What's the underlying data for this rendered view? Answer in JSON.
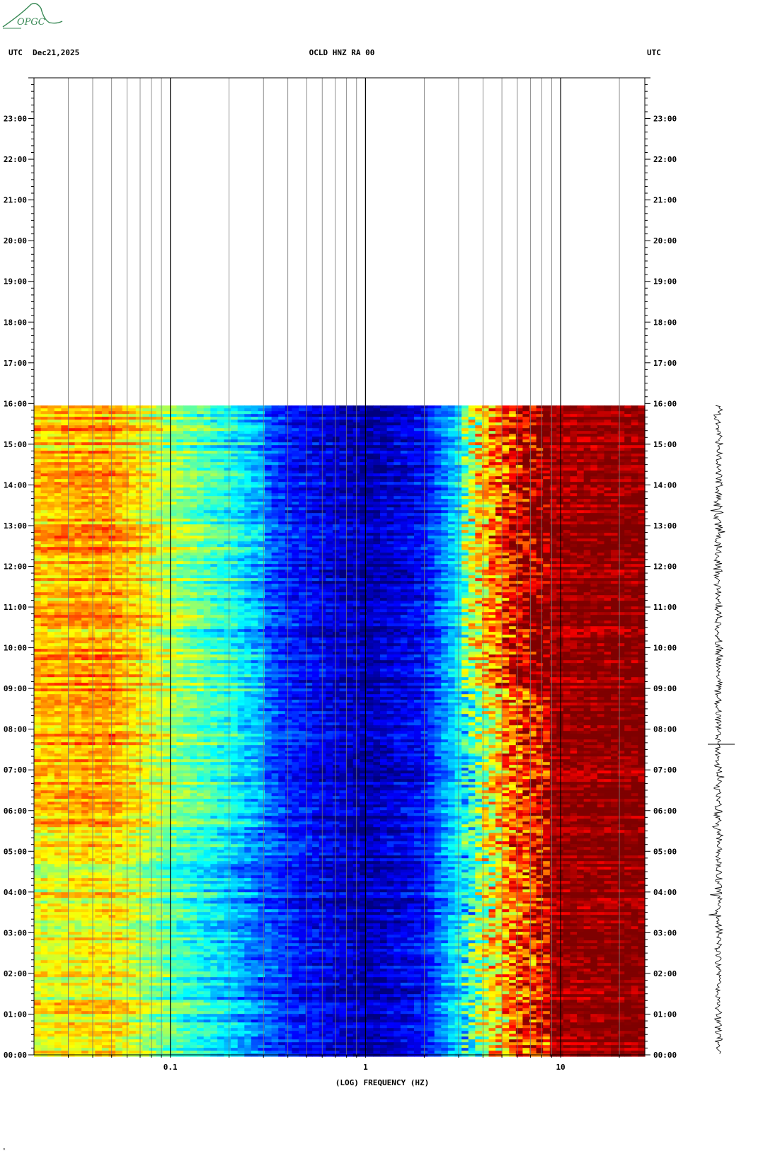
{
  "header": {
    "utc_left": "UTC",
    "date": "Dec21,2025",
    "station_title": "OCLD HNZ RA 00",
    "utc_right": "UTC"
  },
  "logo": {
    "text": "OPGC",
    "color": "#3a8a56"
  },
  "chart_data": {
    "type": "heatmap",
    "title": "OCLD HNZ RA 00",
    "xlabel": "(LOG) FREQUENCY (HZ)",
    "xscale": "log",
    "xlim": [
      0.02,
      27
    ],
    "x_tick_labels": [
      {
        "value": 0.1,
        "label": "0.1"
      },
      {
        "value": 1,
        "label": "1"
      },
      {
        "value": 10,
        "label": "10"
      }
    ],
    "x_grid_values": [
      0.03,
      0.04,
      0.05,
      0.06,
      0.07,
      0.08,
      0.09,
      0.1,
      0.2,
      0.3,
      0.4,
      0.5,
      0.6,
      0.7,
      0.8,
      0.9,
      1,
      2,
      3,
      4,
      5,
      6,
      7,
      8,
      9,
      10,
      20
    ],
    "ylabel_left": "UTC",
    "ylabel_right": "UTC",
    "ylim_hours": [
      0,
      24
    ],
    "y_tick_labels": [
      "00:00",
      "01:00",
      "02:00",
      "03:00",
      "04:00",
      "05:00",
      "06:00",
      "07:00",
      "08:00",
      "09:00",
      "10:00",
      "11:00",
      "12:00",
      "13:00",
      "14:00",
      "15:00",
      "16:00",
      "17:00",
      "18:00",
      "19:00",
      "20:00",
      "21:00",
      "22:00",
      "23:00"
    ],
    "data_end_hour": 15.95,
    "colormap": [
      "#00007f",
      "#0000ff",
      "#0080ff",
      "#00ffff",
      "#80ff80",
      "#ffff00",
      "#ff8000",
      "#ff0000",
      "#7f0000"
    ],
    "spectral_profile": [
      {
        "freq": 0.02,
        "level": 0.62
      },
      {
        "freq": 0.05,
        "level": 0.66
      },
      {
        "freq": 0.1,
        "level": 0.48
      },
      {
        "freq": 0.2,
        "level": 0.34
      },
      {
        "freq": 0.4,
        "level": 0.16
      },
      {
        "freq": 1,
        "level": 0.04
      },
      {
        "freq": 2,
        "level": 0.13
      },
      {
        "freq": 3,
        "level": 0.36
      },
      {
        "freq": 4,
        "level": 0.6
      },
      {
        "freq": 6,
        "level": 0.84
      },
      {
        "freq": 9,
        "level": 0.97
      },
      {
        "freq": 27,
        "level": 1.0
      }
    ],
    "seismogram_trace": {
      "start_hour": 0,
      "end_hour": 15.95,
      "color": "#000000"
    }
  },
  "footer": {
    "corner_mark": "ᴿ"
  }
}
